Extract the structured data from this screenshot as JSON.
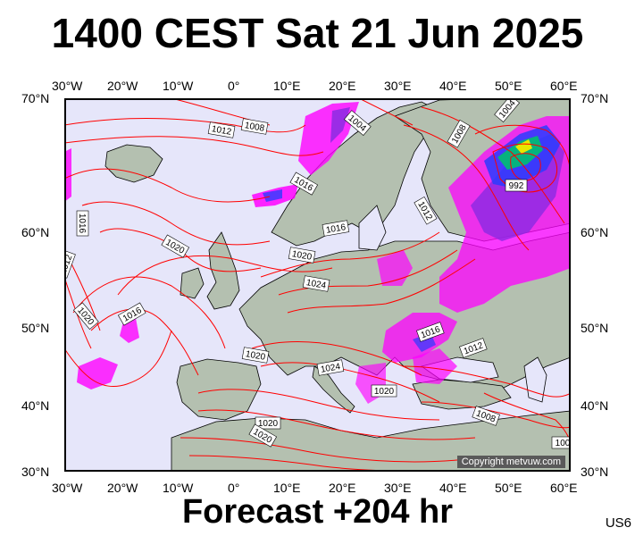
{
  "header": {
    "title": "1400 CEST Sat 21 Jun 2025"
  },
  "footer": {
    "forecast": "Forecast +204 hr",
    "model": "US6"
  },
  "map": {
    "copyright": "Copyright metvuw.com",
    "lon_ticks": [
      "30°W",
      "20°W",
      "10°W",
      "0°",
      "10°E",
      "20°E",
      "30°E",
      "40°E",
      "50°E",
      "60°E"
    ],
    "lat_ticks": [
      "70°N",
      "60°N",
      "50°N",
      "40°N",
      "30°N"
    ],
    "isobar_labels": [
      {
        "text": "1008"
      },
      {
        "text": "1012"
      },
      {
        "text": "1004"
      },
      {
        "text": "1016"
      },
      {
        "text": "1008"
      },
      {
        "text": "1004"
      },
      {
        "text": "992"
      },
      {
        "text": "1012"
      },
      {
        "text": "1016"
      },
      {
        "text": "1016"
      },
      {
        "text": "1020"
      },
      {
        "text": "1020"
      },
      {
        "text": "1024"
      },
      {
        "text": "1012"
      },
      {
        "text": "1020"
      },
      {
        "text": "1016"
      },
      {
        "text": "1016"
      },
      {
        "text": "1012"
      },
      {
        "text": "1020"
      },
      {
        "text": "1024"
      },
      {
        "text": "1020"
      },
      {
        "text": "1008"
      },
      {
        "text": "1020"
      },
      {
        "text": "1020"
      },
      {
        "text": "100"
      }
    ],
    "colors": {
      "background": "#e6e6fa",
      "land": "#b4c0b0",
      "isobar": "#ff0000",
      "rain_magenta": "#ff00ff",
      "rain_purple": "#8a2be2",
      "rain_blue": "#2a3cff",
      "rain_green": "#00c070",
      "rain_yellow": "#e8e800"
    }
  }
}
